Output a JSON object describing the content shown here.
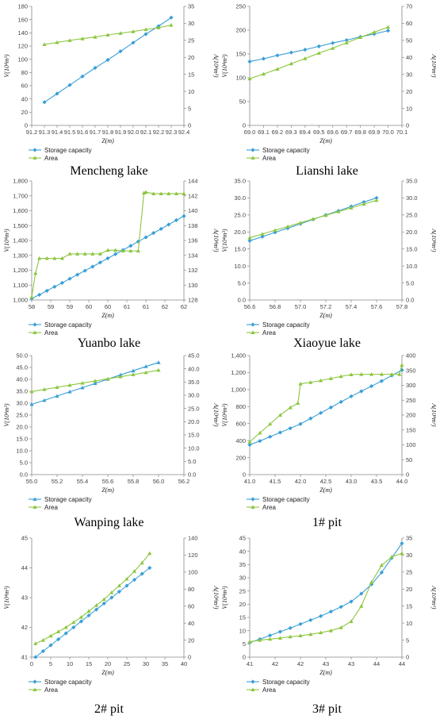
{
  "colors": {
    "storage": "#3a9fd6",
    "area": "#8cc63f",
    "axis": "#888888"
  },
  "chart_data": [
    {
      "type": "line",
      "title": "Mencheng lake",
      "xlabel": "Z(m)",
      "ylabel_left": "V(10⁴m³)",
      "ylabel_right": "A(10⁴m²)",
      "xlim": [
        91.2,
        92.4
      ],
      "xstep": 0.1,
      "xdec": 1,
      "ylim_left": [
        0,
        180
      ],
      "ystep_left": 20,
      "ydec_left": 0,
      "ysep_left": false,
      "ylim_right": [
        0,
        35
      ],
      "ystep_right": 5,
      "ydec_right": 0,
      "legend": "bottom-left",
      "legend_labels": [
        "Storage capacity",
        "Area"
      ],
      "storage": {
        "marker": "diamond",
        "x": [
          91.3,
          91.4,
          91.5,
          91.6,
          91.7,
          91.8,
          91.9,
          92.0,
          92.1,
          92.2,
          92.3
        ],
        "y": [
          35,
          48,
          61,
          74,
          87,
          99,
          112,
          125,
          138,
          150,
          163
        ]
      },
      "area": {
        "marker": "triangle",
        "x": [
          91.3,
          91.4,
          91.5,
          91.6,
          91.7,
          91.8,
          91.9,
          92.0,
          92.1,
          92.2,
          92.3
        ],
        "y": [
          23.8,
          24.4,
          25.0,
          25.5,
          26.0,
          26.6,
          27.1,
          27.6,
          28.2,
          28.7,
          29.5
        ]
      }
    },
    {
      "type": "line",
      "title": "Lianshi lake",
      "xlabel": "Z(m)",
      "ylabel_left": "V(10⁴m³)",
      "ylabel_right": "A(10⁴m²)",
      "xlim": [
        69,
        70.1
      ],
      "xstep": 0.1,
      "xdec": 1,
      "ylim_left": [
        0,
        250
      ],
      "ystep_left": 50,
      "ydec_left": 0,
      "ysep_left": false,
      "ylim_right": [
        0,
        70
      ],
      "ystep_right": 10,
      "ydec_right": 0,
      "legend": "bottom-left",
      "legend_labels": [
        "Storage capacity",
        "Area"
      ],
      "storage": {
        "marker": "diamond",
        "x": [
          69,
          69.1,
          69.2,
          69.3,
          69.4,
          69.5,
          69.6,
          69.7,
          69.8,
          69.9,
          70
        ],
        "y": [
          134,
          140,
          147,
          153,
          159,
          166,
          173,
          179,
          186,
          192,
          199
        ]
      },
      "area": {
        "marker": "triangle",
        "x": [
          69,
          69.1,
          69.2,
          69.3,
          69.4,
          69.5,
          69.6,
          69.7,
          69.8,
          69.9,
          70
        ],
        "y": [
          27.5,
          30.2,
          33.1,
          36.3,
          39.3,
          42.5,
          45.4,
          48.6,
          51.8,
          54.8,
          57.8
        ]
      }
    },
    {
      "type": "line",
      "title": "Yuanbo lake",
      "xlabel": "Z(m)",
      "ylabel_left": "V(10⁴m³)",
      "ylabel_right": "A(10⁴m²)",
      "xlim": [
        58,
        62
      ],
      "xstep": 0.5,
      "xdec": 0,
      "ylim_left": [
        1000,
        1800
      ],
      "ystep_left": 100,
      "ydec_left": 0,
      "ysep_left": true,
      "ylim_right": [
        128,
        144
      ],
      "ystep_right": 2,
      "ydec_right": 0,
      "legend": "bottom-left",
      "legend_labels": [
        "Storage capacity",
        "Area"
      ],
      "storage": {
        "marker": "diamond",
        "x": [
          58,
          58.2,
          58.4,
          58.6,
          58.8,
          59,
          59.2,
          59.4,
          59.6,
          59.8,
          60,
          60.2,
          60.4,
          60.6,
          60.8,
          61,
          61.2,
          61.4,
          61.6,
          61.8,
          62
        ],
        "y": [
          1010,
          1035,
          1062,
          1089,
          1115,
          1143,
          1170,
          1197,
          1224,
          1252,
          1280,
          1308,
          1336,
          1364,
          1393,
          1421,
          1450,
          1478,
          1507,
          1536,
          1564
        ]
      },
      "area": {
        "marker": "triangle",
        "x": [
          58,
          58.1,
          58.2,
          58.4,
          58.6,
          58.8,
          59,
          59.2,
          59.4,
          59.6,
          59.8,
          60,
          60.2,
          60.4,
          60.6,
          60.8,
          60.95,
          61,
          61.2,
          61.4,
          61.6,
          61.8,
          62
        ],
        "y": [
          128.4,
          131.6,
          133.6,
          133.6,
          133.6,
          133.6,
          134.2,
          134.2,
          134.2,
          134.2,
          134.2,
          134.7,
          134.7,
          134.6,
          134.6,
          134.6,
          142.4,
          142.5,
          142.3,
          142.3,
          142.3,
          142.3,
          142.3
        ]
      }
    },
    {
      "type": "line",
      "title": "Xiaoyue lake",
      "xlabel": "Z(m)",
      "ylabel_left": "V(10⁴m³)",
      "ylabel_right": "A(10⁴m²)",
      "xlim": [
        56.6,
        57.8
      ],
      "xstep": 0.2,
      "xdec": 1,
      "ylim_left": [
        0,
        35
      ],
      "ystep_left": 5,
      "ydec_left": 1,
      "ysep_left": false,
      "ylim_right": [
        0,
        35
      ],
      "ystep_right": 5,
      "ydec_right": 1,
      "legend": "bottom-left",
      "legend_labels": [
        "Storage capacity",
        "Area"
      ],
      "storage": {
        "marker": "diamond",
        "x": [
          56.6,
          56.7,
          56.8,
          56.9,
          57,
          57.1,
          57.2,
          57.3,
          57.4,
          57.5,
          57.6
        ],
        "y": [
          17.4,
          18.6,
          19.9,
          21.1,
          22.4,
          23.7,
          25.0,
          26.2,
          27.5,
          28.8,
          30.0
        ]
      },
      "area": {
        "marker": "triangle",
        "x": [
          56.6,
          56.7,
          56.8,
          56.9,
          57,
          57.1,
          57.2,
          57.3,
          57.4,
          57.5,
          57.6
        ],
        "y": [
          18.3,
          19.4,
          20.5,
          21.6,
          22.7,
          23.8,
          24.9,
          26.0,
          27.1,
          28.2,
          29.3
        ]
      }
    },
    {
      "type": "line",
      "title": "Wanping lake",
      "xlabel": "Z(m)",
      "ylabel_left": "V(10⁴m³)",
      "ylabel_right": "A(10⁴m²)",
      "xlim": [
        55,
        56.2
      ],
      "xstep": 0.2,
      "xdec": 1,
      "ylim_left": [
        0,
        50
      ],
      "ystep_left": 5,
      "ydec_left": 1,
      "ysep_left": false,
      "ylim_right": [
        0,
        45
      ],
      "ystep_right": 5,
      "ydec_right": 1,
      "legend": "bottom-left",
      "legend_labels": [
        "Storage capacity",
        "Area"
      ],
      "storage": {
        "marker": "triangle",
        "x": [
          55,
          55.1,
          55.2,
          55.3,
          55.4,
          55.5,
          55.6,
          55.7,
          55.8,
          55.9,
          56
        ],
        "y": [
          29.5,
          31.2,
          33.0,
          34.8,
          36.5,
          38.3,
          40.1,
          41.9,
          43.6,
          45.4,
          47.1
        ]
      },
      "area": {
        "marker": "triangle",
        "x": [
          55,
          55.1,
          55.2,
          55.3,
          55.4,
          55.5,
          55.6,
          55.7,
          55.8,
          55.9,
          56
        ],
        "y": [
          31.4,
          32.2,
          33.0,
          33.8,
          34.6,
          35.4,
          36.2,
          37.0,
          37.8,
          38.6,
          39.5
        ]
      }
    },
    {
      "type": "line",
      "title": "1# pit",
      "xlabel": "Z(m)",
      "ylabel_left": "V(10⁴m³)",
      "ylabel_right": "A(10⁴m²)",
      "xlim": [
        41,
        44
      ],
      "xstep": 0.5,
      "xdec": 1,
      "ylim_left": [
        0,
        1400
      ],
      "ystep_left": 200,
      "ydec_left": 0,
      "ysep_left": true,
      "ylim_right": [
        0,
        400
      ],
      "ystep_right": 50,
      "ydec_right": 0,
      "legend": "bottom-left",
      "legend_labels": [
        "Storage capacity",
        "Area"
      ],
      "storage": {
        "marker": "diamond",
        "x": [
          41,
          41.2,
          41.4,
          41.6,
          41.8,
          42,
          42.2,
          42.4,
          42.6,
          42.8,
          43,
          43.2,
          43.4,
          43.6,
          43.8,
          44
        ],
        "y": [
          350,
          395,
          445,
          495,
          545,
          595,
          660,
          725,
          790,
          855,
          920,
          980,
          1040,
          1100,
          1165,
          1230
        ]
      },
      "area": {
        "marker": "triangle",
        "x": [
          41,
          41.2,
          41.4,
          41.6,
          41.8,
          41.95,
          42,
          42.2,
          42.4,
          42.6,
          42.8,
          43,
          43.2,
          43.4,
          43.6,
          43.8,
          43.95,
          44
        ],
        "y": [
          110,
          140,
          170,
          200,
          225,
          240,
          305,
          310,
          316,
          323,
          330,
          336,
          337,
          337,
          337,
          337,
          337,
          368
        ]
      }
    },
    {
      "type": "line",
      "title": "2# pit",
      "xlabel": "Z(m)",
      "ylabel_left": "V(10⁴m³)",
      "ylabel_right": "A(10⁴m²)",
      "xlim": [
        0,
        40
      ],
      "xstep": 5,
      "xdec": 0,
      "ylim_left": [
        41,
        45
      ],
      "ystep_left": 1,
      "ydec_left": 0,
      "ysep_left": false,
      "ylim_right": [
        0,
        140
      ],
      "ystep_right": 20,
      "ydec_right": 0,
      "legend": "bottom-left",
      "legend_labels": [
        "Storage capacity",
        "Area"
      ],
      "storage": {
        "marker": "diamond",
        "x": [
          1,
          3,
          5,
          7,
          9,
          11,
          13,
          15,
          17,
          19,
          21,
          23,
          25,
          27,
          29,
          31
        ],
        "y": [
          41.0,
          41.2,
          41.4,
          41.6,
          41.8,
          42.0,
          42.2,
          42.4,
          42.6,
          42.8,
          43.0,
          43.2,
          43.4,
          43.6,
          43.8,
          44.0
        ]
      },
      "area": {
        "marker": "triangle",
        "x": [
          1,
          3,
          5,
          7,
          9,
          11,
          13,
          15,
          17,
          19,
          21,
          23,
          25,
          27,
          29,
          31
        ],
        "y": [
          16,
          20,
          25,
          30,
          35,
          41,
          47,
          54,
          61,
          68,
          76,
          84,
          92,
          101,
          111,
          122
        ]
      }
    },
    {
      "type": "line",
      "title": "3# pit",
      "xlabel": "Z(m)",
      "ylabel_left": "V(10⁴m³)",
      "ylabel_right": "A(10⁴m²)",
      "xlim": [
        41,
        44
      ],
      "xstep": 0.5,
      "xdec": 0,
      "ylim_left": [
        0,
        45
      ],
      "ystep_left": 5,
      "ydec_left": 0,
      "ysep_left": false,
      "ylim_right": [
        0,
        35
      ],
      "ystep_right": 5,
      "ydec_right": 0,
      "legend": "bottom-left",
      "legend_labels": [
        "Storage capacity",
        "Area"
      ],
      "storage": {
        "marker": "diamond",
        "x": [
          41,
          41.2,
          41.4,
          41.6,
          41.8,
          42,
          42.2,
          42.4,
          42.6,
          42.8,
          43,
          43.2,
          43.4,
          43.6,
          43.8,
          44
        ],
        "y": [
          5.5,
          6.8,
          8.2,
          9.6,
          11.0,
          12.5,
          14.0,
          15.5,
          17.2,
          19.0,
          21.0,
          24.0,
          27.5,
          32.0,
          37.5,
          43.0
        ]
      },
      "area": {
        "marker": "triangle",
        "x": [
          41,
          41.2,
          41.4,
          41.6,
          41.8,
          42,
          42.2,
          42.4,
          42.6,
          42.8,
          43,
          43.2,
          43.4,
          43.6,
          43.8,
          44
        ],
        "y": [
          4.5,
          5.0,
          5.3,
          5.6,
          6.0,
          6.3,
          6.7,
          7.2,
          7.8,
          8.7,
          10.5,
          15.0,
          22.0,
          27.0,
          29.5,
          30.5
        ]
      }
    }
  ]
}
